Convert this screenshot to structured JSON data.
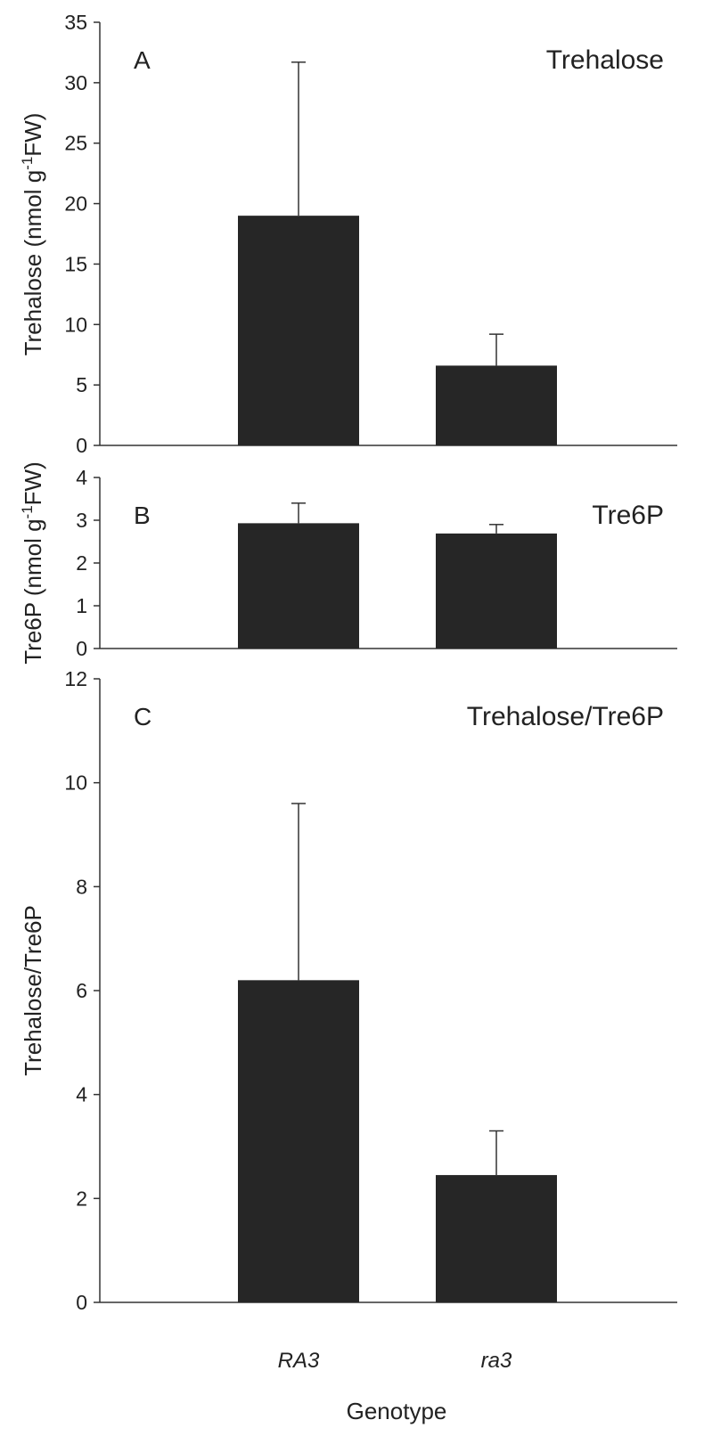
{
  "chart_data": {
    "type": "bar",
    "categories": [
      "RA3",
      "ra3"
    ],
    "xlabel": "Genotype",
    "bar_color": "#262626",
    "panels": [
      {
        "letter": "A",
        "title": "Trehalose",
        "ylabel": "Trehalose (nmol g-1FW)",
        "ylabel_parts": {
          "main": "Trehalose (nmol g",
          "sup": "-1",
          "tail": "FW)"
        },
        "ylim": [
          0,
          35
        ],
        "yticks": [
          0,
          5,
          10,
          15,
          20,
          25,
          30,
          35
        ],
        "values": [
          19.0,
          6.6
        ],
        "errors": [
          12.7,
          2.6
        ]
      },
      {
        "letter": "B",
        "title": "Tre6P",
        "ylabel": "Tre6P (nmol g-1FW)",
        "ylabel_parts": {
          "main": "Tre6P (nmol g",
          "sup": "-1",
          "tail": "FW)"
        },
        "ylim": [
          0,
          4
        ],
        "yticks": [
          0,
          1,
          2,
          3,
          4
        ],
        "values": [
          2.93,
          2.69
        ],
        "errors": [
          0.47,
          0.21
        ]
      },
      {
        "letter": "C",
        "title": "Trehalose/Tre6P",
        "ylabel": "Trehalose/Tre6P",
        "ylabel_parts": {
          "main": "Trehalose/Tre6P",
          "sup": "",
          "tail": ""
        },
        "ylim": [
          0,
          12
        ],
        "yticks": [
          0,
          2,
          4,
          6,
          8,
          10,
          12
        ],
        "values": [
          6.2,
          2.45
        ],
        "errors": [
          3.4,
          0.85
        ]
      }
    ]
  }
}
